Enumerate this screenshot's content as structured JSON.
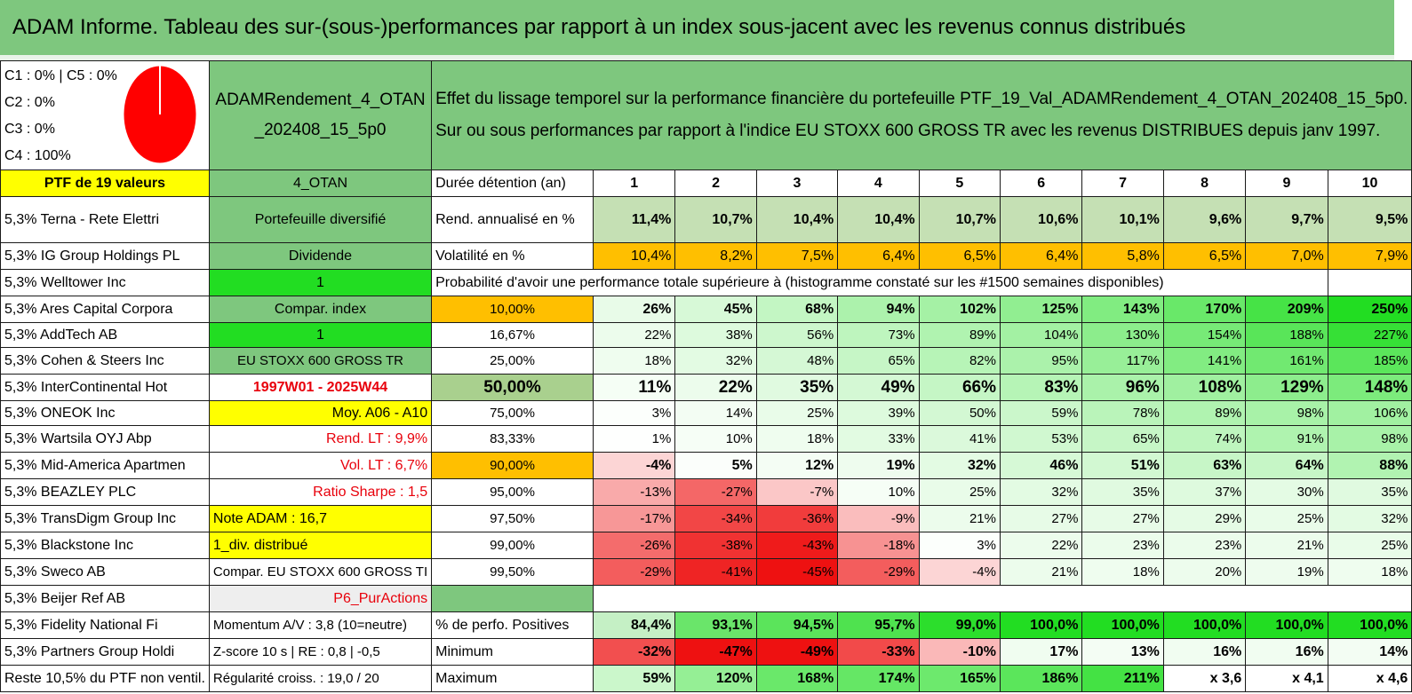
{
  "title": "ADAM Informe. Tableau des sur-(sous-)performances par rapport à un index sous-jacent avec les revenus connus distribués",
  "pie_legend": [
    "C1 : 0% | C5 : 0%",
    "C2 : 0%",
    "C3 : 0%",
    "C4 : 100%"
  ],
  "portfolio_name_l1": "ADAMRendement_4_OTAN",
  "portfolio_name_l2": "_202408_15_5p0",
  "description_l1": "Effet du lissage temporel sur la performance financière du portefeuille PTF_19_Val_ADAMRendement_4_OTAN_202408_15_5p0.",
  "description_l2": "Sur ou sous performances par rapport à l'indice EU STOXX 600 GROSS TR avec les revenus DISTRIBUES depuis janv 1997.",
  "ptf_header": "PTF de 19 valeurs",
  "holdings": [
    "5,3% Terna - Rete Elettri",
    "5,3% IG Group Holdings PL",
    "5,3% Welltower Inc",
    "5,3% Ares Capital Corpora",
    "5,3% AddTech AB",
    "5,3% Cohen & Steers Inc",
    "5,3% InterContinental Hot",
    "5,3% ONEOK Inc",
    "5,3% Wartsila OYJ Abp",
    "5,3% Mid-America Apartmen",
    "5,3% BEAZLEY PLC",
    "5,3% TransDigm Group Inc",
    "5,3% Blackstone Inc",
    "5,3% Sweco AB",
    "5,3% Beijer Ref AB",
    "5,3% Fidelity National Fi",
    "5,3% Partners Group Holdi",
    "Reste 10,5% du PTF non ventil."
  ],
  "middle": [
    "4_OTAN",
    "Portefeuille diversifié",
    "Dividende",
    "1",
    "Compar. index",
    "1",
    "EU STOXX 600 GROSS TR",
    "1997W01 - 2025W44",
    "Moy. A06 - A10",
    "Rend. LT : 9,9%",
    "Vol. LT : 6,7%",
    "Ratio Sharpe : 1,5",
    "Note ADAM : 16,7",
    "1_div. distribué",
    "Compar. EU STOXX 600 GROSS TI",
    "P6_PurActions",
    "Momentum A/V : 3,8 (10=neutre)",
    "Z-score 10 s | RE : 0,8 | -0,5",
    "Régularité croiss. : 19,0 / 20"
  ],
  "duration_label": "Durée détention (an)",
  "years": [
    "1",
    "2",
    "3",
    "4",
    "5",
    "6",
    "7",
    "8",
    "9",
    "10"
  ],
  "return_label": "Rend. annualisé en %",
  "returns": [
    "11,4%",
    "10,7%",
    "10,4%",
    "10,4%",
    "10,7%",
    "10,6%",
    "10,1%",
    "9,6%",
    "9,7%",
    "9,5%"
  ],
  "vol_label": "Volatilité en %",
  "volatility": [
    "10,4%",
    "8,2%",
    "7,5%",
    "6,4%",
    "6,5%",
    "6,4%",
    "5,8%",
    "6,5%",
    "7,0%",
    "7,9%"
  ],
  "prob_header": "Probabilité d'avoir une performance totale supérieure à (histogramme constaté sur les #1500 semaines disponibles)",
  "quantiles": [
    {
      "p": "10,00%",
      "v": [
        "26%",
        "45%",
        "68%",
        "94%",
        "102%",
        "125%",
        "143%",
        "170%",
        "209%",
        "250%"
      ]
    },
    {
      "p": "16,67%",
      "v": [
        "22%",
        "38%",
        "56%",
        "73%",
        "89%",
        "104%",
        "130%",
        "154%",
        "188%",
        "227%"
      ]
    },
    {
      "p": "25,00%",
      "v": [
        "18%",
        "32%",
        "48%",
        "65%",
        "82%",
        "95%",
        "117%",
        "141%",
        "161%",
        "185%"
      ]
    },
    {
      "p": "50,00%",
      "v": [
        "11%",
        "22%",
        "35%",
        "49%",
        "66%",
        "83%",
        "96%",
        "108%",
        "129%",
        "148%"
      ]
    },
    {
      "p": "75,00%",
      "v": [
        "3%",
        "14%",
        "25%",
        "39%",
        "50%",
        "59%",
        "78%",
        "89%",
        "98%",
        "106%"
      ]
    },
    {
      "p": "83,33%",
      "v": [
        "1%",
        "10%",
        "18%",
        "33%",
        "41%",
        "53%",
        "65%",
        "74%",
        "91%",
        "98%"
      ]
    },
    {
      "p": "90,00%",
      "v": [
        "-4%",
        "5%",
        "12%",
        "19%",
        "32%",
        "46%",
        "51%",
        "63%",
        "64%",
        "88%"
      ]
    },
    {
      "p": "95,00%",
      "v": [
        "-13%",
        "-27%",
        "-7%",
        "10%",
        "25%",
        "32%",
        "35%",
        "37%",
        "30%",
        "35%"
      ]
    },
    {
      "p": "97,50%",
      "v": [
        "-17%",
        "-34%",
        "-36%",
        "-9%",
        "21%",
        "27%",
        "27%",
        "29%",
        "25%",
        "32%"
      ]
    },
    {
      "p": "99,00%",
      "v": [
        "-26%",
        "-38%",
        "-43%",
        "-18%",
        "3%",
        "22%",
        "23%",
        "23%",
        "21%",
        "25%"
      ]
    },
    {
      "p": "99,50%",
      "v": [
        "-29%",
        "-41%",
        "-45%",
        "-29%",
        "-4%",
        "21%",
        "18%",
        "20%",
        "19%",
        "18%"
      ]
    }
  ],
  "pos_label": "% de perfo. Positives",
  "positives": [
    "84,4%",
    "93,1%",
    "94,5%",
    "95,7%",
    "99,0%",
    "100,0%",
    "100,0%",
    "100,0%",
    "100,0%",
    "100,0%"
  ],
  "min_label": "Minimum",
  "minimum": [
    "-32%",
    "-47%",
    "-49%",
    "-33%",
    "-10%",
    "17%",
    "13%",
    "16%",
    "16%",
    "14%"
  ],
  "max_label": "Maximum",
  "maximum": [
    "59%",
    "120%",
    "168%",
    "174%",
    "165%",
    "186%",
    "211%",
    "x 3,6",
    "x 4,1",
    "x 4,6"
  ],
  "colors": {
    "header_green": "#7ec77e",
    "yellow": "#ffff00",
    "bright_green": "#22dd22",
    "orange": "#ffbf00",
    "pie_red": "#ff0000",
    "neg_red": "#e8000b"
  }
}
